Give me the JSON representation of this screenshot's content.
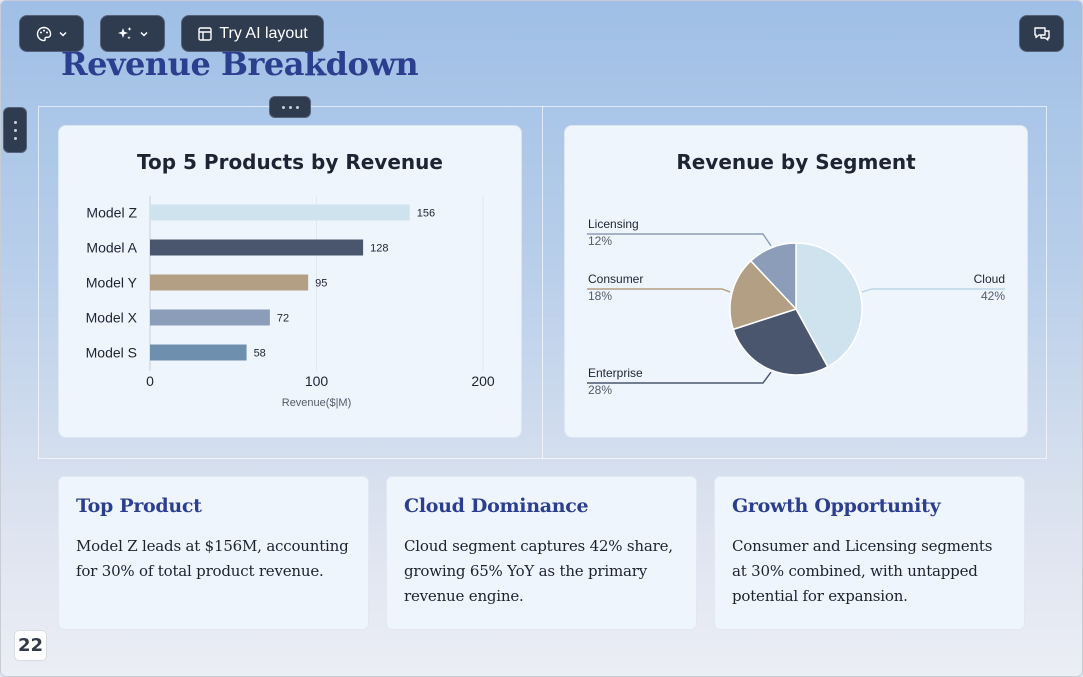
{
  "toolbar": {
    "theme_icon": "palette-icon",
    "ai_icon": "sparkle-icon",
    "layout_icon": "layout-icon",
    "layout_label": "Try AI layout",
    "comment_icon": "comments-icon"
  },
  "slide": {
    "title": "Revenue Breakdown",
    "page_number": "22"
  },
  "bar_chart": {
    "title": "Top 5 Products by Revenue"
  },
  "pie_chart": {
    "title": "Revenue by Segment"
  },
  "chart_data": [
    {
      "type": "bar",
      "orientation": "horizontal",
      "title": "Top 5 Products by Revenue",
      "categories": [
        "Model Z",
        "Model A",
        "Model Y",
        "Model X",
        "Model S"
      ],
      "values": [
        156,
        128,
        95,
        72,
        58
      ],
      "colors": [
        "#cfe3ee",
        "#4a566d",
        "#b39f83",
        "#8b9db8",
        "#6f8faf"
      ],
      "xlabel": "Revenue($|M)",
      "ylabel": "",
      "xlim": [
        0,
        200
      ],
      "xticks": [
        "0",
        "100",
        "200"
      ],
      "data_labels": [
        "156",
        "128",
        "95",
        "72",
        "58"
      ],
      "grid": true
    },
    {
      "type": "pie",
      "title": "Revenue by Segment",
      "slices": [
        {
          "label": "Cloud",
          "value": 42,
          "value_label": "42%",
          "color": "#cfe3ee"
        },
        {
          "label": "Enterprise",
          "value": 28,
          "value_label": "28%",
          "color": "#4a566d"
        },
        {
          "label": "Consumer",
          "value": 18,
          "value_label": "18%",
          "color": "#b39f83"
        },
        {
          "label": "Licensing",
          "value": 12,
          "value_label": "12%",
          "color": "#8b9db8"
        }
      ]
    }
  ],
  "insights": [
    {
      "title": "Top Product",
      "text": "Model Z leads at $156M, accounting for 30% of total product revenue."
    },
    {
      "title": "Cloud Dominance",
      "text": "Cloud segment captures 42% share, growing 65% YoY as the primary revenue engine."
    },
    {
      "title": "Growth Opportunity",
      "text": "Consumer and Licensing segments at 30% combined, with untapped potential for expansion."
    }
  ],
  "colors": {
    "title": "#2c3f8f",
    "toolbar_bg": "#2f3b4f",
    "card_bg": "#eff5fd"
  }
}
